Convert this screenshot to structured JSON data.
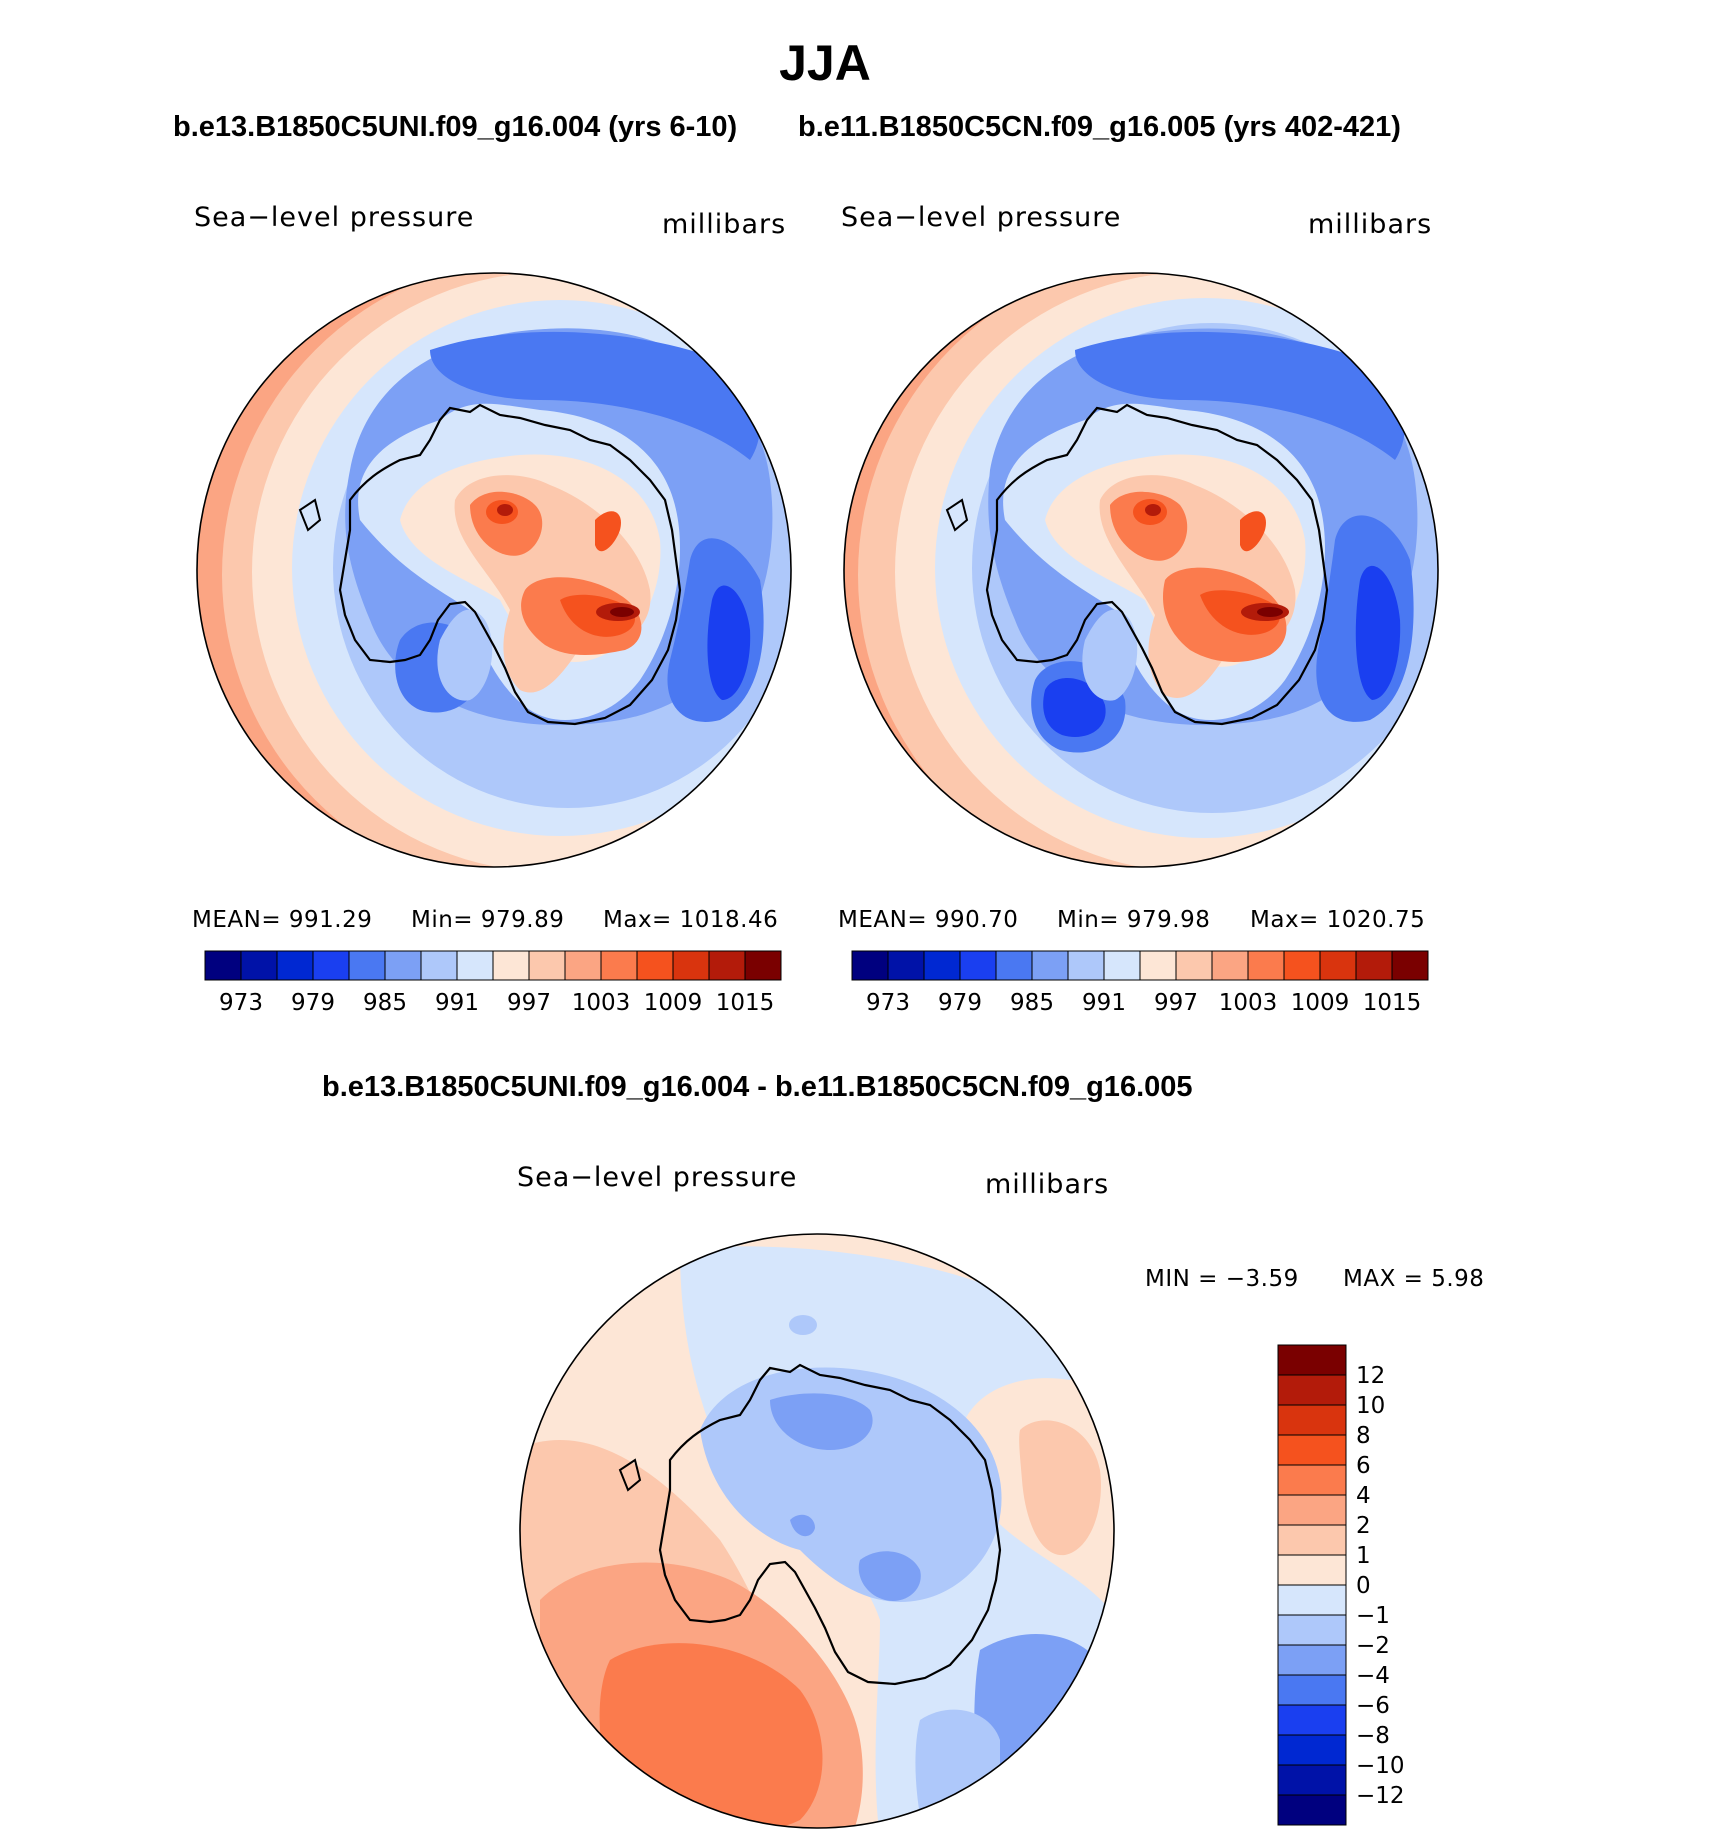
{
  "figure": {
    "season_title": "JJA",
    "panels": [
      {
        "title": "b.e13.B1850C5UNI.f09_g16.004 (yrs 6-10)",
        "variable": "Sea−level  pressure",
        "units": "millibars",
        "stats": {
          "mean": "MEAN=  991.29",
          "min": "Min=  979.89",
          "max": "Max=  1018.46"
        }
      },
      {
        "title": "b.e11.B1850C5CN.f09_g16.005 (yrs 402-421)",
        "variable": "Sea−level  pressure",
        "units": "millibars",
        "stats": {
          "mean": "MEAN=  990.70",
          "min": "Min=  979.98",
          "max": "Max=  1020.75"
        }
      },
      {
        "title": "b.e13.B1850C5UNI.f09_g16.004 - b.e11.B1850C5CN.f09_g16.005",
        "variable": "Sea−level  pressure",
        "units": "millibars",
        "stats": {
          "min": "MIN =    −3.59",
          "max": "MAX =     5.98"
        }
      }
    ],
    "colorbar_abs": {
      "labels": [
        "973",
        "979",
        "985",
        "991",
        "997",
        "1003",
        "1009",
        "1015"
      ],
      "colors": [
        "#00007f",
        "#0012a8",
        "#0028d2",
        "#1a3ff0",
        "#4a78f2",
        "#7ca0f5",
        "#aec8fa",
        "#d6e6fc",
        "#fde6d6",
        "#fcc8ad",
        "#fba583",
        "#fb7b4d",
        "#f5521e",
        "#d9340e",
        "#b31b0a",
        "#7a0000"
      ]
    },
    "colorbar_diff": {
      "labels": [
        "12",
        "10",
        "8",
        "6",
        "4",
        "2",
        "1",
        "0",
        "−1",
        "−2",
        "−4",
        "−6",
        "−8",
        "−10",
        "−12"
      ],
      "colors": [
        "#7a0000",
        "#b31b0a",
        "#d9340e",
        "#f5521e",
        "#fb7b4d",
        "#fba583",
        "#fcc8ad",
        "#fde6d6",
        "#d6e6fc",
        "#aec8fa",
        "#7ca0f5",
        "#4a78f2",
        "#1a3ff0",
        "#0028d2",
        "#0012a8",
        "#00007f"
      ]
    }
  }
}
